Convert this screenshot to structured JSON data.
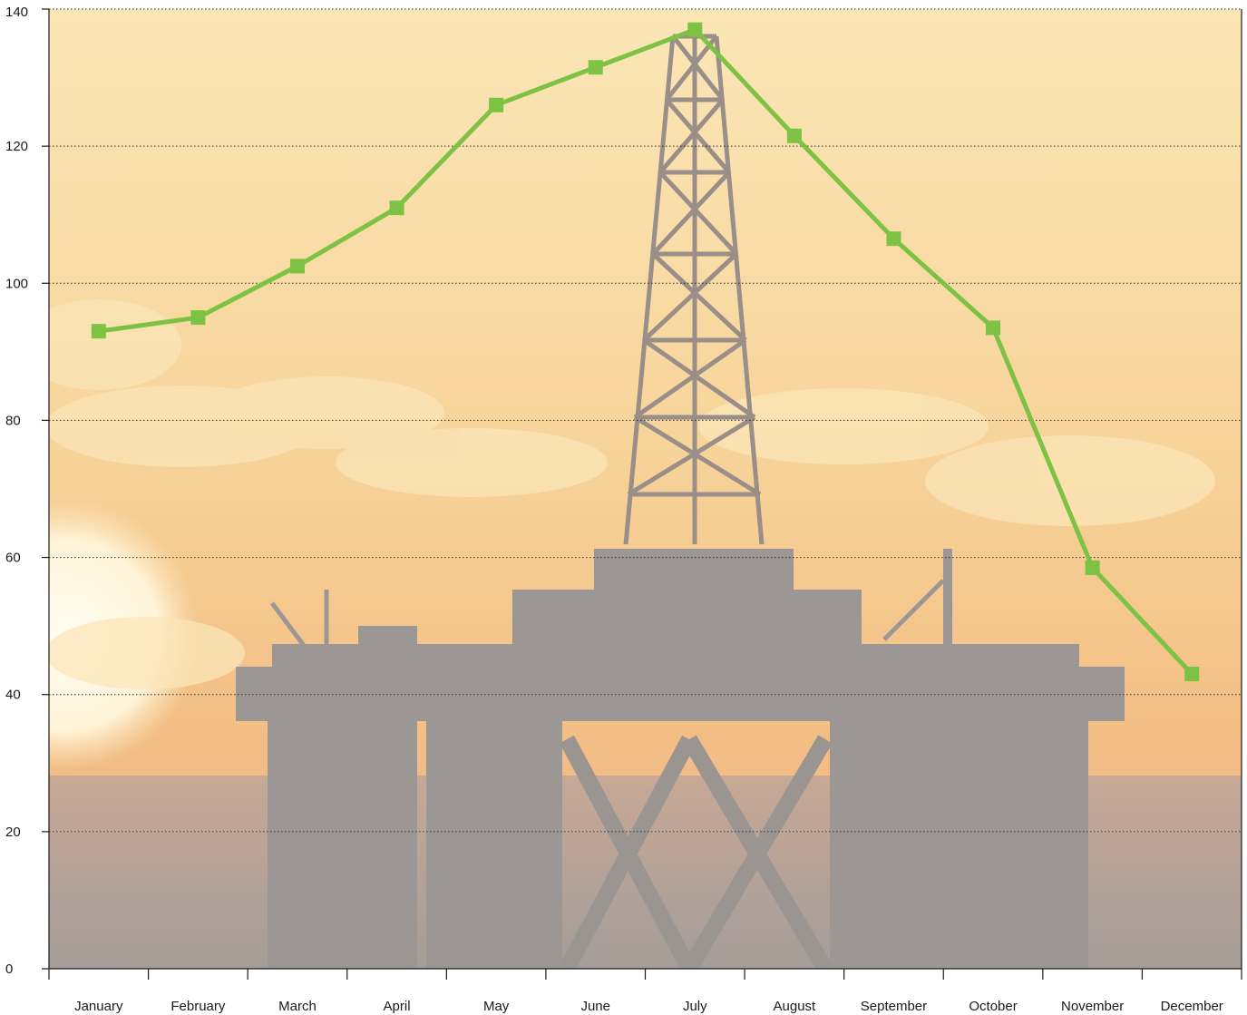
{
  "chart_data": {
    "type": "line",
    "title": "",
    "xlabel": "",
    "ylabel": "",
    "categories": [
      "January",
      "February",
      "March",
      "April",
      "May",
      "June",
      "July",
      "August",
      "September",
      "October",
      "November",
      "December"
    ],
    "series": [
      {
        "values": [
          93,
          95,
          102.5,
          111,
          126,
          131.5,
          137,
          121.5,
          106.5,
          93.5,
          58.5,
          43
        ]
      }
    ],
    "ylim": [
      0,
      140
    ],
    "yticks": [
      0,
      20,
      40,
      60,
      80,
      100,
      120,
      140
    ],
    "grid": "horizontal dotted",
    "legend": "none",
    "colors": {
      "series": "#7dc242",
      "sky_top": "#f8e0ad",
      "sky_mid": "#f4c07f",
      "sun": "#fff6dc",
      "structure": "#9a9591",
      "sea": "#9e9996"
    },
    "background_image": "offshore-oil-rig-at-sunset"
  }
}
